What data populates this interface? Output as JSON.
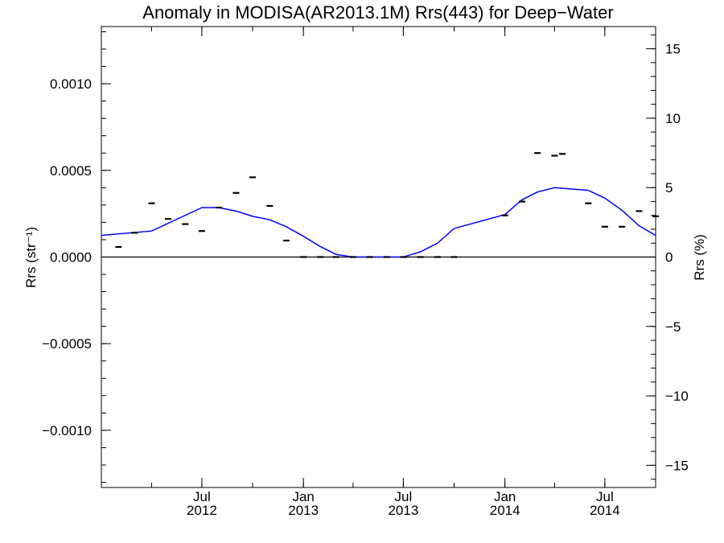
{
  "chart_data": {
    "type": "line",
    "title": "Anomaly in MODISA(AR2013.1M) Rrs(443) for Deep−Water",
    "ylabel_left": "Rrs (str⁻¹)",
    "ylabel_right": "Rrs (%)",
    "xlim": [
      "2012-01-01",
      "2014-10-01"
    ],
    "ylim": [
      -0.00133,
      0.00133
    ],
    "ylim_right": [
      -16.6,
      16.6
    ],
    "x_ticks": [
      {
        "date": "2012-07-01",
        "line1": "Jul",
        "line2": "2012"
      },
      {
        "date": "2013-01-01",
        "line1": "Jan",
        "line2": "2013"
      },
      {
        "date": "2013-07-01",
        "line1": "Jul",
        "line2": "2013"
      },
      {
        "date": "2014-01-01",
        "line1": "Jan",
        "line2": "2014"
      },
      {
        "date": "2014-07-01",
        "line1": "Jul",
        "line2": "2014"
      }
    ],
    "y_ticks_left": [
      {
        "value": 0.001,
        "label": "0.0010"
      },
      {
        "value": 0.0005,
        "label": "0.0005"
      },
      {
        "value": 0.0,
        "label": "0.0000"
      },
      {
        "value": -0.0005,
        "label": "−0.0005"
      },
      {
        "value": -0.001,
        "label": "−0.0010"
      }
    ],
    "y_ticks_right": [
      {
        "value": 15,
        "label": "15"
      },
      {
        "value": 10,
        "label": "10"
      },
      {
        "value": 5,
        "label": "5"
      },
      {
        "value": 0,
        "label": "0"
      },
      {
        "value": -5,
        "label": "−5"
      },
      {
        "value": -10,
        "label": "−10"
      },
      {
        "value": -15,
        "label": "−15"
      }
    ],
    "zero_line": 0,
    "series": [
      {
        "type": "scatter",
        "marker": "dash",
        "color": "#000000",
        "points": [
          {
            "x": "2012-02-01",
            "y": 5.8e-05
          },
          {
            "x": "2012-03-01",
            "y": 0.00014
          },
          {
            "x": "2012-04-01",
            "y": 0.00031
          },
          {
            "x": "2012-05-01",
            "y": 0.00022
          },
          {
            "x": "2012-06-01",
            "y": 0.00019
          },
          {
            "x": "2012-07-01",
            "y": 0.00015
          },
          {
            "x": "2012-08-01",
            "y": 0.000285
          },
          {
            "x": "2012-09-01",
            "y": 0.00037
          },
          {
            "x": "2012-10-01",
            "y": 0.00046
          },
          {
            "x": "2012-11-01",
            "y": 0.000295
          },
          {
            "x": "2012-12-01",
            "y": 9.5e-05
          },
          {
            "x": "2013-01-01",
            "y": 0.0
          },
          {
            "x": "2013-02-01",
            "y": 0.0
          },
          {
            "x": "2013-03-01",
            "y": 0.0
          },
          {
            "x": "2013-04-01",
            "y": 0.0
          },
          {
            "x": "2013-05-01",
            "y": 0.0
          },
          {
            "x": "2013-06-01",
            "y": 0.0
          },
          {
            "x": "2013-07-01",
            "y": 0.0
          },
          {
            "x": "2013-08-01",
            "y": 0.0
          },
          {
            "x": "2013-09-01",
            "y": 0.0
          },
          {
            "x": "2013-10-01",
            "y": 0.0
          },
          {
            "x": "2014-01-01",
            "y": 0.00024
          },
          {
            "x": "2014-02-01",
            "y": 0.00032
          },
          {
            "x": "2014-03-01",
            "y": 0.0006
          },
          {
            "x": "2014-04-01",
            "y": 0.000585
          },
          {
            "x": "2014-04-15",
            "y": 0.000595
          },
          {
            "x": "2014-06-01",
            "y": 0.00031
          },
          {
            "x": "2014-07-01",
            "y": 0.000175
          },
          {
            "x": "2014-08-01",
            "y": 0.000175
          },
          {
            "x": "2014-09-01",
            "y": 0.000265
          },
          {
            "x": "2014-10-01",
            "y": 0.000235
          }
        ]
      },
      {
        "type": "line",
        "color": "#0000ff",
        "points": [
          {
            "x": "2012-01-01",
            "y": 0.000125
          },
          {
            "x": "2012-04-01",
            "y": 0.00015
          },
          {
            "x": "2012-07-01",
            "y": 0.000285
          },
          {
            "x": "2012-08-01",
            "y": 0.000285
          },
          {
            "x": "2012-09-01",
            "y": 0.000265
          },
          {
            "x": "2012-10-01",
            "y": 0.000235
          },
          {
            "x": "2012-11-01",
            "y": 0.000215
          },
          {
            "x": "2012-12-01",
            "y": 0.000175
          },
          {
            "x": "2013-01-01",
            "y": 0.00012
          },
          {
            "x": "2013-02-01",
            "y": 6e-05
          },
          {
            "x": "2013-03-01",
            "y": 1.5e-05
          },
          {
            "x": "2013-04-01",
            "y": 0.0
          },
          {
            "x": "2013-07-01",
            "y": 0.0
          },
          {
            "x": "2013-08-01",
            "y": 3e-05
          },
          {
            "x": "2013-09-01",
            "y": 8e-05
          },
          {
            "x": "2013-10-01",
            "y": 0.000165
          },
          {
            "x": "2014-01-01",
            "y": 0.000245
          },
          {
            "x": "2014-02-01",
            "y": 0.00033
          },
          {
            "x": "2014-03-01",
            "y": 0.000375
          },
          {
            "x": "2014-04-01",
            "y": 0.0004
          },
          {
            "x": "2014-06-01",
            "y": 0.000385
          },
          {
            "x": "2014-07-01",
            "y": 0.00034
          },
          {
            "x": "2014-08-01",
            "y": 0.00027
          },
          {
            "x": "2014-09-01",
            "y": 0.00018
          },
          {
            "x": "2014-10-01",
            "y": 0.000125
          }
        ]
      }
    ]
  }
}
